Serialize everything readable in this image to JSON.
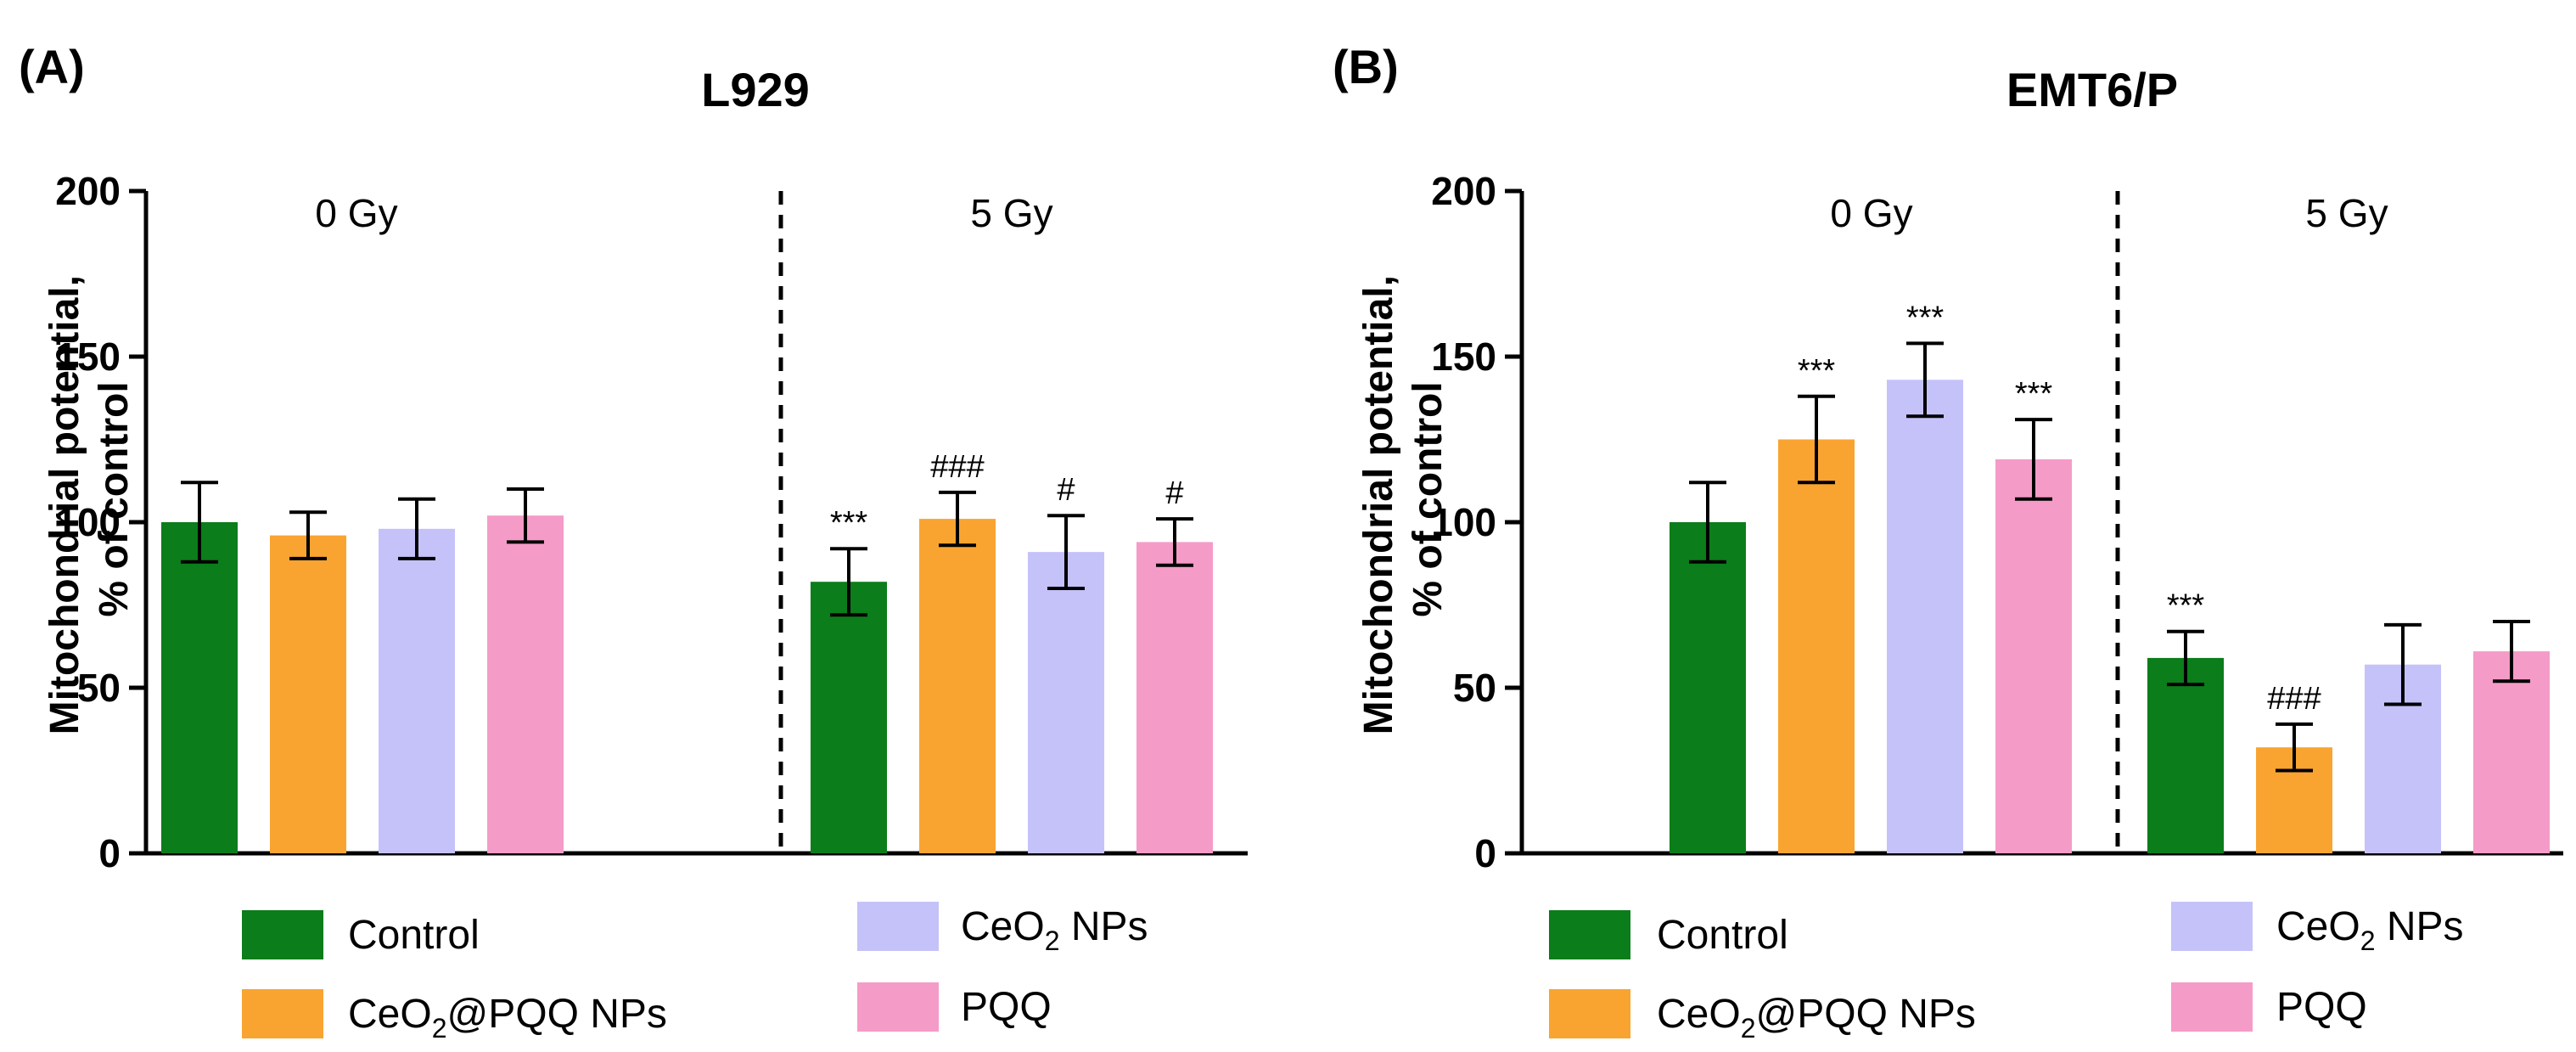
{
  "legend": {
    "control": "Control",
    "ceo2pqq_pre": "CeO",
    "ceo2pqq_sub": "2",
    "ceo2pqq_post": "@PQQ NPs",
    "ceo2_pre": "CeO",
    "ceo2_sub": "2",
    "ceo2_post": " NPs",
    "pqq": "PQQ"
  },
  "chart_data": [
    {
      "type": "bar",
      "panel_label": "(A)",
      "title": "L929",
      "ylabel_line1": "Mitochondrial potential,",
      "ylabel_line2": "% of control",
      "ylim": [
        0,
        200
      ],
      "yticks": [
        0,
        50,
        100,
        150,
        200
      ],
      "groups": [
        "0 Gy",
        "5 Gy"
      ],
      "series": [
        {
          "name": "Control",
          "color": "#0b7d1a",
          "values": [
            100,
            82
          ],
          "errors": [
            12,
            10
          ],
          "annotations": [
            "",
            "***"
          ]
        },
        {
          "name": "CeO2@PQQ NPs",
          "color": "#f9a431",
          "values": [
            96,
            101
          ],
          "errors": [
            7,
            8
          ],
          "annotations": [
            "",
            "###"
          ]
        },
        {
          "name": "CeO2 NPs",
          "color": "#c5c2f9",
          "values": [
            98,
            91
          ],
          "errors": [
            9,
            11
          ],
          "annotations": [
            "",
            "#"
          ]
        },
        {
          "name": "PQQ",
          "color": "#f59bc8",
          "values": [
            102,
            94
          ],
          "errors": [
            8,
            7
          ],
          "annotations": [
            "",
            "#"
          ]
        }
      ]
    },
    {
      "type": "bar",
      "panel_label": "(B)",
      "title": "EMT6/P",
      "ylabel_line1": "Mitochondrial potential,",
      "ylabel_line2": "% of control",
      "ylim": [
        0,
        200
      ],
      "yticks": [
        0,
        50,
        100,
        150,
        200
      ],
      "groups": [
        "0 Gy",
        "5 Gy"
      ],
      "series": [
        {
          "name": "Control",
          "color": "#0b7d1a",
          "values": [
            100,
            59
          ],
          "errors": [
            12,
            8
          ],
          "annotations": [
            "",
            "***"
          ]
        },
        {
          "name": "CeO2@PQQ NPs",
          "color": "#f9a431",
          "values": [
            125,
            32
          ],
          "errors": [
            13,
            7
          ],
          "annotations": [
            "***",
            "###"
          ]
        },
        {
          "name": "CeO2 NPs",
          "color": "#c5c2f9",
          "values": [
            143,
            57
          ],
          "errors": [
            11,
            12
          ],
          "annotations": [
            "***",
            ""
          ]
        },
        {
          "name": "PQQ",
          "color": "#f59bc8",
          "values": [
            119,
            61
          ],
          "errors": [
            12,
            9
          ],
          "annotations": [
            "***",
            ""
          ]
        }
      ]
    }
  ]
}
